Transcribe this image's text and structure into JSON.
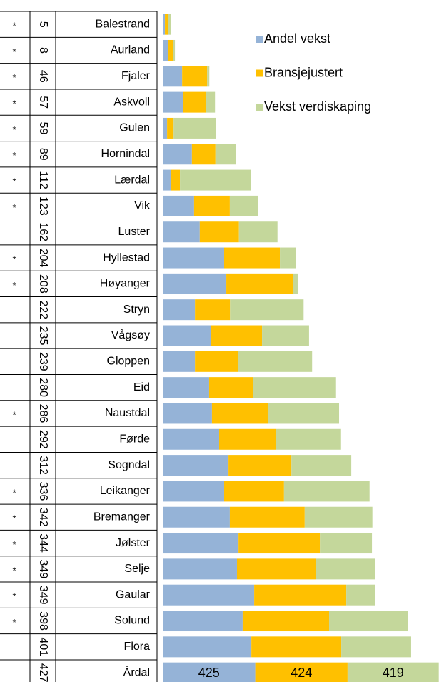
{
  "chart_data": {
    "type": "bar",
    "orientation": "horizontal",
    "stacked": true,
    "categories": [
      "Balestrand",
      "Aurland",
      "Fjaler",
      "Askvoll",
      "Gulen",
      "Hornindal",
      "Lærdal",
      "Vik",
      "Luster",
      "Hyllestad",
      "Høyanger",
      "Stryn",
      "Vågsøy",
      "Gloppen",
      "Eid",
      "Naustdal",
      "Førde",
      "Sogndal",
      "Leikanger",
      "Bremanger",
      "Jølster",
      "Selje",
      "Gaular",
      "Solund",
      "Flora",
      "Årdal"
    ],
    "ranks": [
      5,
      8,
      46,
      57,
      59,
      89,
      112,
      123,
      162,
      204,
      208,
      222,
      235,
      239,
      280,
      286,
      292,
      312,
      336,
      342,
      344,
      349,
      349,
      398,
      401,
      427
    ],
    "flags": [
      "*",
      "*",
      "*",
      "*",
      "*",
      "*",
      "*",
      "*",
      null,
      "*",
      "*",
      null,
      null,
      null,
      null,
      "*",
      null,
      null,
      "*",
      "*",
      "*",
      "*",
      "*",
      "*",
      null,
      null
    ],
    "series": [
      {
        "name": "Andel vekst",
        "color": "#95b3d7",
        "values": [
          10,
          26,
          89,
          95,
          20,
          134,
          36,
          144,
          170,
          282,
          292,
          148,
          223,
          148,
          213,
          226,
          259,
          302,
          282,
          308,
          348,
          341,
          420,
          367,
          407,
          425
        ]
      },
      {
        "name": "Bransjejustert",
        "color": "#ffc000",
        "values": [
          13,
          20,
          115,
          102,
          30,
          108,
          43,
          164,
          180,
          256,
          305,
          161,
          233,
          197,
          203,
          256,
          262,
          289,
          275,
          344,
          374,
          364,
          423,
          397,
          413,
          424
        ]
      },
      {
        "name": "Vekst verdiskaping",
        "color": "#c4d79b",
        "values": [
          13,
          10,
          10,
          43,
          193,
          95,
          325,
          131,
          177,
          75,
          23,
          338,
          216,
          341,
          380,
          328,
          298,
          275,
          393,
          311,
          239,
          272,
          134,
          364,
          321,
          419
        ]
      }
    ],
    "xlim": [
      0,
      1269
    ],
    "legend": "top-right"
  }
}
